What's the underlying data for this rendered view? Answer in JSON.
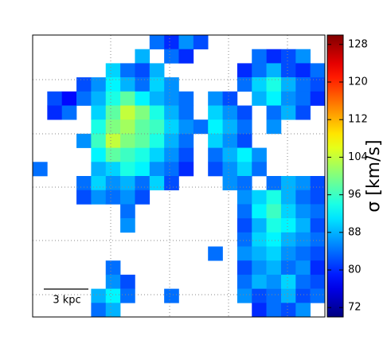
{
  "chart_data": {
    "type": "heatmap",
    "colormap": "jet",
    "colorbar_label": "σ [km/s]",
    "scale_bar_label": "3 kpc",
    "clim": [
      70,
      130
    ],
    "cticks": [
      72,
      80,
      88,
      96,
      104,
      112,
      120,
      128
    ],
    "values": [
      [
        null,
        null,
        null,
        null,
        null,
        null,
        null,
        null,
        84,
        80,
        86,
        82,
        null,
        null,
        null,
        null,
        null,
        null,
        null,
        null
      ],
      [
        null,
        null,
        null,
        null,
        null,
        null,
        null,
        88,
        null,
        84,
        80,
        null,
        null,
        null,
        null,
        84,
        80,
        82,
        86,
        null
      ],
      [
        null,
        null,
        null,
        null,
        null,
        90,
        84,
        82,
        88,
        null,
        null,
        null,
        null,
        null,
        80,
        84,
        88,
        82,
        80,
        84
      ],
      [
        null,
        null,
        null,
        82,
        86,
        92,
        88,
        84,
        90,
        86,
        null,
        null,
        null,
        null,
        84,
        90,
        94,
        88,
        84,
        82
      ],
      [
        null,
        82,
        78,
        84,
        88,
        94,
        98,
        92,
        88,
        86,
        84,
        null,
        86,
        82,
        null,
        88,
        92,
        86,
        84,
        80
      ],
      [
        null,
        80,
        84,
        null,
        90,
        98,
        104,
        100,
        94,
        88,
        84,
        null,
        90,
        86,
        82,
        null,
        84,
        88,
        82,
        null
      ],
      [
        null,
        null,
        null,
        null,
        94,
        100,
        102,
        98,
        96,
        90,
        86,
        84,
        92,
        88,
        84,
        null,
        86,
        null,
        null,
        null
      ],
      [
        null,
        null,
        null,
        86,
        96,
        104,
        100,
        98,
        94,
        88,
        84,
        null,
        90,
        86,
        82,
        null,
        null,
        null,
        null,
        null
      ],
      [
        null,
        null,
        null,
        null,
        92,
        98,
        96,
        94,
        90,
        86,
        82,
        null,
        84,
        88,
        92,
        86,
        null,
        null,
        null,
        null
      ],
      [
        84,
        null,
        null,
        null,
        88,
        90,
        94,
        92,
        86,
        84,
        80,
        null,
        82,
        86,
        90,
        84,
        null,
        null,
        null,
        null
      ],
      [
        null,
        null,
        null,
        84,
        90,
        86,
        88,
        84,
        90,
        82,
        null,
        null,
        null,
        86,
        84,
        null,
        84,
        88,
        86,
        82
      ],
      [
        null,
        null,
        null,
        82,
        86,
        84,
        86,
        82,
        null,
        null,
        null,
        null,
        null,
        null,
        86,
        90,
        94,
        88,
        84,
        82
      ],
      [
        null,
        null,
        null,
        null,
        null,
        null,
        84,
        null,
        null,
        null,
        null,
        null,
        null,
        null,
        84,
        92,
        96,
        90,
        86,
        84
      ],
      [
        null,
        null,
        null,
        null,
        null,
        null,
        86,
        null,
        null,
        null,
        null,
        null,
        null,
        null,
        82,
        88,
        94,
        92,
        88,
        82
      ],
      [
        null,
        null,
        null,
        null,
        null,
        null,
        null,
        null,
        null,
        null,
        null,
        null,
        null,
        null,
        84,
        90,
        92,
        88,
        86,
        84
      ],
      [
        null,
        null,
        null,
        null,
        null,
        null,
        null,
        null,
        null,
        null,
        null,
        null,
        84,
        null,
        86,
        88,
        90,
        86,
        84,
        82
      ],
      [
        null,
        null,
        null,
        null,
        null,
        84,
        null,
        null,
        null,
        null,
        null,
        null,
        null,
        null,
        82,
        86,
        88,
        84,
        86,
        80
      ],
      [
        null,
        null,
        null,
        null,
        null,
        86,
        82,
        null,
        null,
        null,
        null,
        null,
        null,
        null,
        84,
        88,
        86,
        90,
        84,
        82
      ],
      [
        null,
        null,
        null,
        null,
        88,
        92,
        84,
        null,
        null,
        84,
        null,
        null,
        null,
        null,
        86,
        82,
        84,
        88,
        82,
        84
      ],
      [
        null,
        null,
        null,
        null,
        84,
        88,
        null,
        null,
        null,
        null,
        null,
        null,
        null,
        null,
        null,
        80,
        84,
        82,
        86,
        null
      ]
    ]
  }
}
